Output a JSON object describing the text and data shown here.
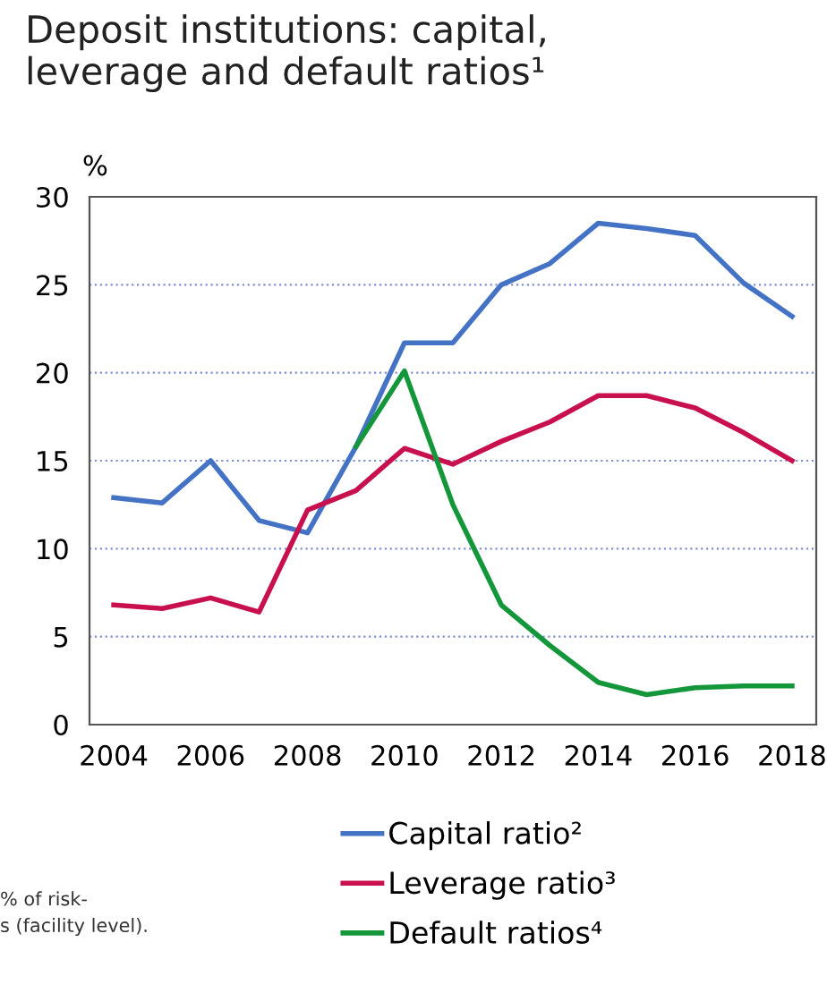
{
  "chart_data": {
    "type": "line",
    "title": "Deposit institutions: capital,\nleverage and default ratios¹",
    "ylabel": "%",
    "x": [
      2004,
      2005,
      2006,
      2007,
      2008,
      2009,
      2010,
      2011,
      2012,
      2013,
      2014,
      2015,
      2016,
      2017,
      2018
    ],
    "series": [
      {
        "name": "Capital ratio²",
        "color": "#4472c4",
        "values": [
          12.9,
          12.6,
          15.0,
          11.6,
          10.9,
          15.8,
          21.7,
          21.7,
          25.0,
          26.2,
          28.5,
          28.2,
          27.8,
          25.1,
          23.2
        ]
      },
      {
        "name": "Leverage ratio³",
        "color": "#c8104e",
        "values": [
          6.8,
          6.6,
          7.2,
          6.4,
          12.2,
          13.3,
          15.7,
          14.8,
          16.1,
          17.2,
          18.7,
          18.7,
          18.0,
          16.6,
          15.0
        ]
      },
      {
        "name": "Default ratios⁴",
        "color": "#13973a",
        "values": [
          null,
          null,
          null,
          null,
          null,
          15.8,
          20.1,
          12.5,
          6.8,
          4.5,
          2.4,
          1.7,
          2.1,
          2.2,
          2.2
        ]
      }
    ],
    "xlim": [
      2003.5,
      2018.5
    ],
    "xticks": [
      2004,
      2006,
      2008,
      2010,
      2012,
      2014,
      2016,
      2018
    ],
    "ylim": [
      0,
      30
    ],
    "yticks": [
      0,
      5,
      10,
      15,
      20,
      25,
      30
    ],
    "grid": "y",
    "legend": "bottom",
    "marker": "none",
    "line_style": "solid",
    "annotations": [
      "% of risk-\ns (facility level)."
    ]
  }
}
